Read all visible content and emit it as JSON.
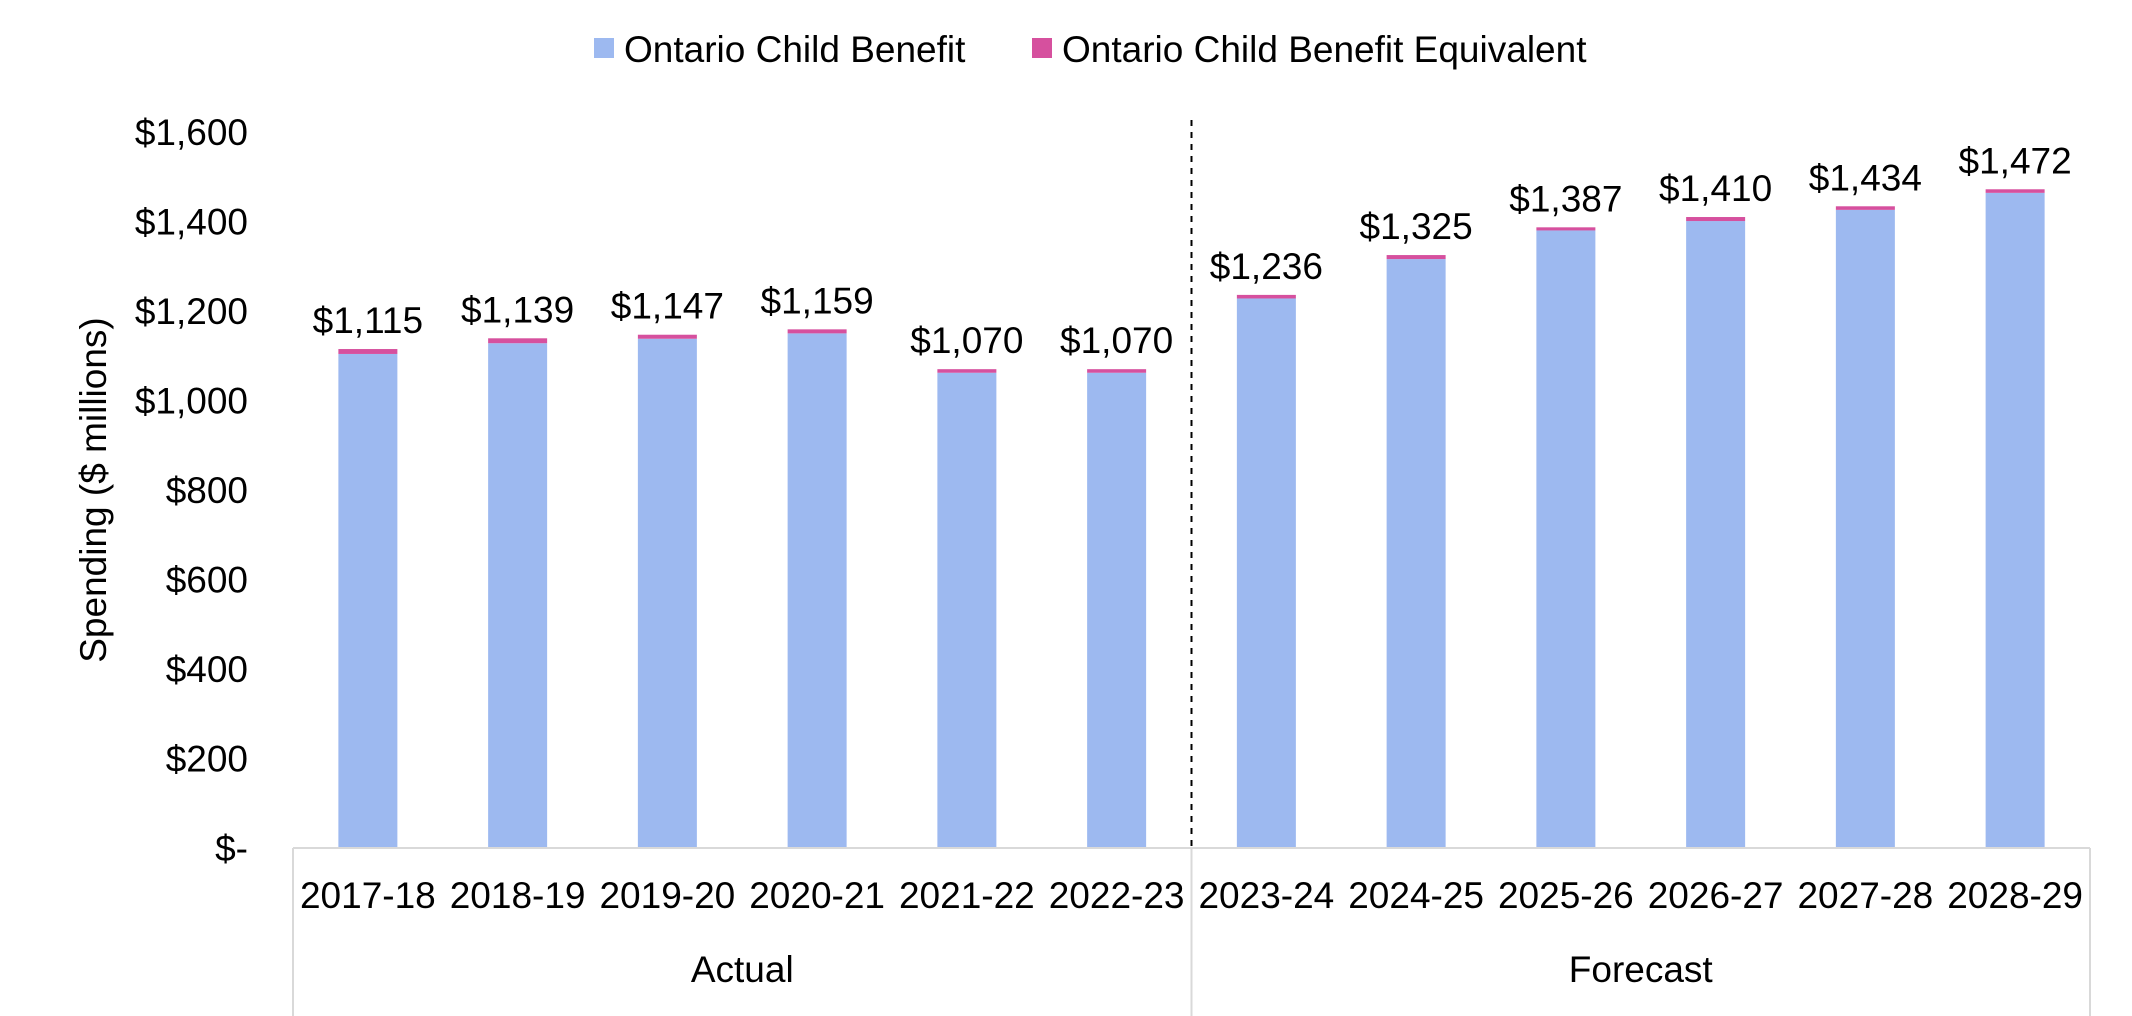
{
  "chart_data": {
    "type": "bar",
    "stacked": true,
    "title": "",
    "xlabel": "",
    "ylabel": "Spending ($ millions)",
    "ylim": [
      0,
      1600
    ],
    "y_ticks": [
      0,
      200,
      400,
      600,
      800,
      1000,
      1200,
      1400,
      1600
    ],
    "y_tick_labels": [
      "$-",
      "$200",
      "$400",
      "$600",
      "$800",
      "$1,000",
      "$1,200",
      "$1,400",
      "$1,600"
    ],
    "grid": false,
    "legend_position": "top-center",
    "categories": [
      "2017-18",
      "2018-19",
      "2019-20",
      "2020-21",
      "2021-22",
      "2022-23",
      "2023-24",
      "2024-25",
      "2025-26",
      "2026-27",
      "2027-28",
      "2028-29"
    ],
    "category_groups": [
      {
        "label": "Actual",
        "count": 6
      },
      {
        "label": "Forecast",
        "count": 6
      }
    ],
    "series": [
      {
        "name": "Ontario Child Benefit",
        "color": "#9DB9F0",
        "values": [
          1104,
          1128,
          1138,
          1150,
          1062,
          1062,
          1228,
          1316,
          1380,
          1401,
          1426,
          1464
        ]
      },
      {
        "name": "Ontario Child Benefit Equivalent",
        "color": "#D6509E",
        "values": [
          11,
          11,
          9,
          9,
          8,
          8,
          8,
          9,
          7,
          9,
          8,
          8
        ]
      }
    ],
    "totals_labels": [
      "$1,115",
      "$1,139",
      "$1,147",
      "$1,159",
      "$1,070",
      "$1,070",
      "$1,236",
      "$1,325",
      "$1,387",
      "$1,410",
      "$1,434",
      "$1,472"
    ],
    "totals": [
      1115,
      1139,
      1147,
      1159,
      1070,
      1070,
      1236,
      1325,
      1387,
      1410,
      1434,
      1472
    ]
  }
}
